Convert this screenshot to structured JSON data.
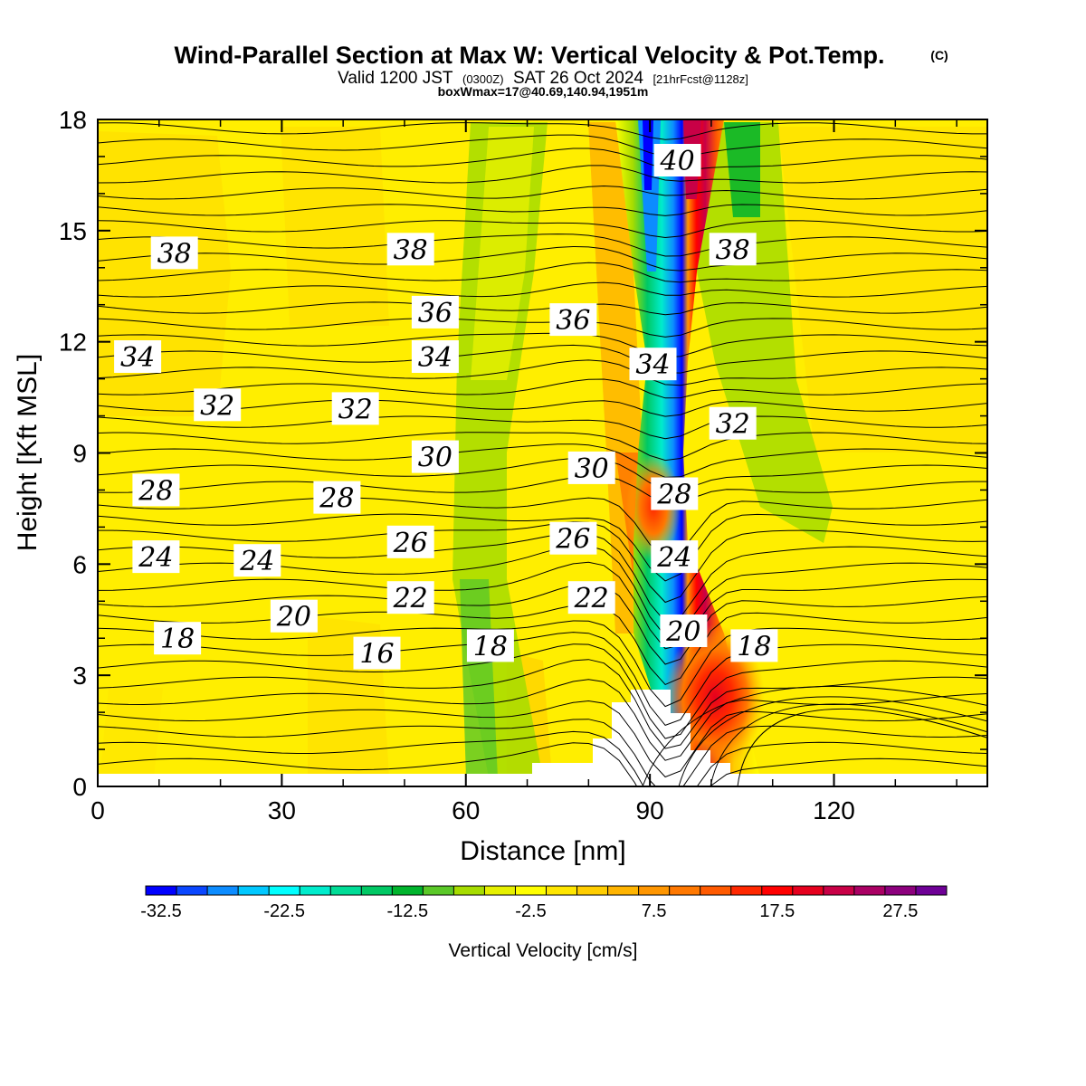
{
  "header": {
    "title": "Wind-Parallel Section at Max W: Vertical Velocity & Pot.Temp.",
    "copyright": "(C)",
    "valid_pre": "Valid 1200 JST",
    "valid_z": "(0300Z)",
    "valid_date": "SAT 26 Oct 2024",
    "forecast": "[21hrFcst@1128z]",
    "box": "boxWmax=17@40.69,140.94,1951m"
  },
  "chart_data": {
    "type": "heatmap",
    "xlabel": "Distance [nm]",
    "ylabel": "Height [Kft MSL]",
    "xlim": [
      0,
      145
    ],
    "ylim": [
      0,
      18
    ],
    "x_ticks": [
      "0",
      "30",
      "60",
      "90",
      "120"
    ],
    "y_ticks": [
      "0",
      "3",
      "6",
      "9",
      "12",
      "15",
      "18"
    ],
    "colorbar": {
      "label": "Vertical Velocity [cm/s]",
      "tick_labels": [
        "-32.5",
        "-22.5",
        "-12.5",
        "-2.5",
        "7.5",
        "17.5",
        "27.5"
      ],
      "colors": [
        "#0000ff",
        "#0a46ff",
        "#0c8cff",
        "#00c8ff",
        "#00ffff",
        "#00eccc",
        "#00dc96",
        "#00c864",
        "#00b42d",
        "#5ac828",
        "#a6dc00",
        "#e6f000",
        "#ffff00",
        "#ffe600",
        "#ffcd00",
        "#ffb400",
        "#ff9600",
        "#ff7800",
        "#ff5a00",
        "#ff2800",
        "#ff0000",
        "#e6001e",
        "#c80046",
        "#aa0064",
        "#8c007d",
        "#6e0096"
      ]
    },
    "theta_contour_labels": [
      {
        "label": "38",
        "x": 12.5,
        "y": 14.4
      },
      {
        "label": "38",
        "x": 51,
        "y": 14.5
      },
      {
        "label": "38",
        "x": 103.5,
        "y": 14.5
      },
      {
        "label": "40",
        "x": 94.5,
        "y": 16.9
      },
      {
        "label": "36",
        "x": 55,
        "y": 12.8
      },
      {
        "label": "36",
        "x": 77.5,
        "y": 12.6
      },
      {
        "label": "34",
        "x": 6.5,
        "y": 11.6
      },
      {
        "label": "34",
        "x": 55,
        "y": 11.6
      },
      {
        "label": "34",
        "x": 90.5,
        "y": 11.4
      },
      {
        "label": "32",
        "x": 19.5,
        "y": 10.3
      },
      {
        "label": "32",
        "x": 42,
        "y": 10.2
      },
      {
        "label": "32",
        "x": 103.5,
        "y": 9.8
      },
      {
        "label": "30",
        "x": 55,
        "y": 8.9
      },
      {
        "label": "30",
        "x": 80.5,
        "y": 8.6
      },
      {
        "label": "28",
        "x": 9.5,
        "y": 8.0
      },
      {
        "label": "28",
        "x": 39,
        "y": 7.8
      },
      {
        "label": "28",
        "x": 94,
        "y": 7.9
      },
      {
        "label": "26",
        "x": 51,
        "y": 6.6
      },
      {
        "label": "26",
        "x": 77.5,
        "y": 6.7
      },
      {
        "label": "24",
        "x": 9.5,
        "y": 6.2
      },
      {
        "label": "24",
        "x": 26,
        "y": 6.1
      },
      {
        "label": "24",
        "x": 94,
        "y": 6.2
      },
      {
        "label": "22",
        "x": 51,
        "y": 5.1
      },
      {
        "label": "22",
        "x": 80.5,
        "y": 5.1
      },
      {
        "label": "20",
        "x": 32,
        "y": 4.6
      },
      {
        "label": "20",
        "x": 95.5,
        "y": 4.2
      },
      {
        "label": "18",
        "x": 13,
        "y": 4.0
      },
      {
        "label": "18",
        "x": 64,
        "y": 3.8
      },
      {
        "label": "18",
        "x": 107,
        "y": 3.8
      },
      {
        "label": "16",
        "x": 45.5,
        "y": 3.6
      }
    ],
    "vv_peaks_cm_s": [
      {
        "x": 90.5,
        "y": 15.5,
        "w": -32.5
      },
      {
        "x": 97.5,
        "y": 16.0,
        "w": 27.5
      },
      {
        "x": 101.5,
        "y": 2.5,
        "w": 22.5
      },
      {
        "x": 91.5,
        "y": 7.0,
        "w": 17.5
      }
    ]
  }
}
